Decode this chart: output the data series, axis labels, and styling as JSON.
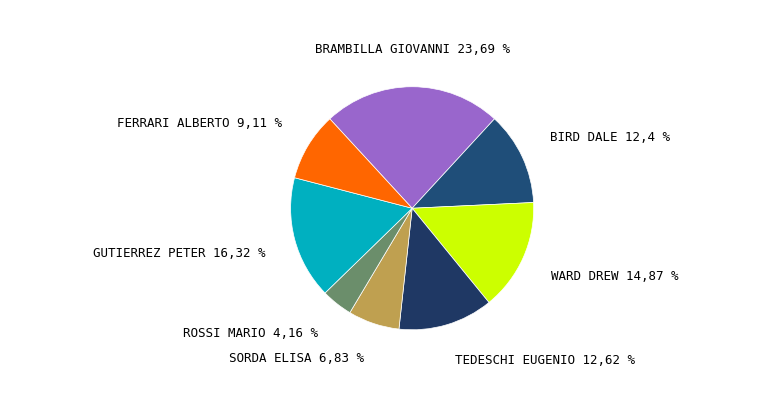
{
  "labels": [
    "BRAMBILLA GIOVANNI 23,69 %",
    "BIRD DALE 12,4 %",
    "WARD DREW 14,87 %",
    "TEDESCHI EUGENIO 12,62 %",
    "SORDA ELISA 6,83 %",
    "ROSSI MARIO 4,16 %",
    "GUTIERREZ PETER 16,32 %",
    "FERRARI ALBERTO 9,11 %"
  ],
  "values": [
    23.69,
    12.4,
    14.87,
    12.62,
    6.83,
    4.16,
    16.32,
    9.11
  ],
  "colors": [
    "#9966CC",
    "#1F4E79",
    "#CCFF00",
    "#1F3864",
    "#BFA050",
    "#6B8E6B",
    "#00B0C0",
    "#FF6600"
  ],
  "background_color": "#FFFFFF",
  "font_family": "monospace",
  "font_size": 9
}
